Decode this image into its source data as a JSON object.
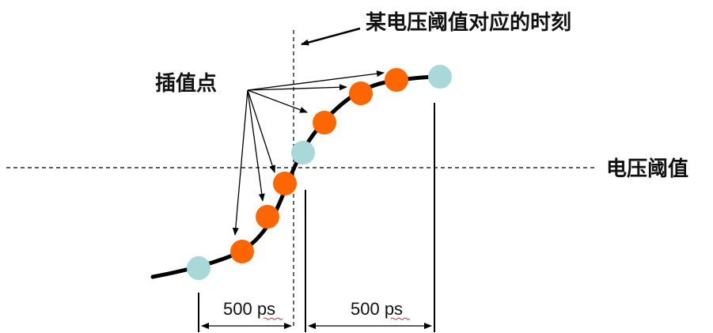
{
  "labels": {
    "threshold_time": "某电压阈值对应的时刻",
    "interpolated_points": "插值点",
    "voltage_threshold": "电压阈值",
    "interval_left": "500 ps",
    "interval_right": "500 ps"
  },
  "colors": {
    "curve": "#000000",
    "sample_point": "#a8d8d8",
    "interpolated_point": "#ff6600",
    "line": "#000000",
    "underline_squiggle": "#cc3333"
  }
}
